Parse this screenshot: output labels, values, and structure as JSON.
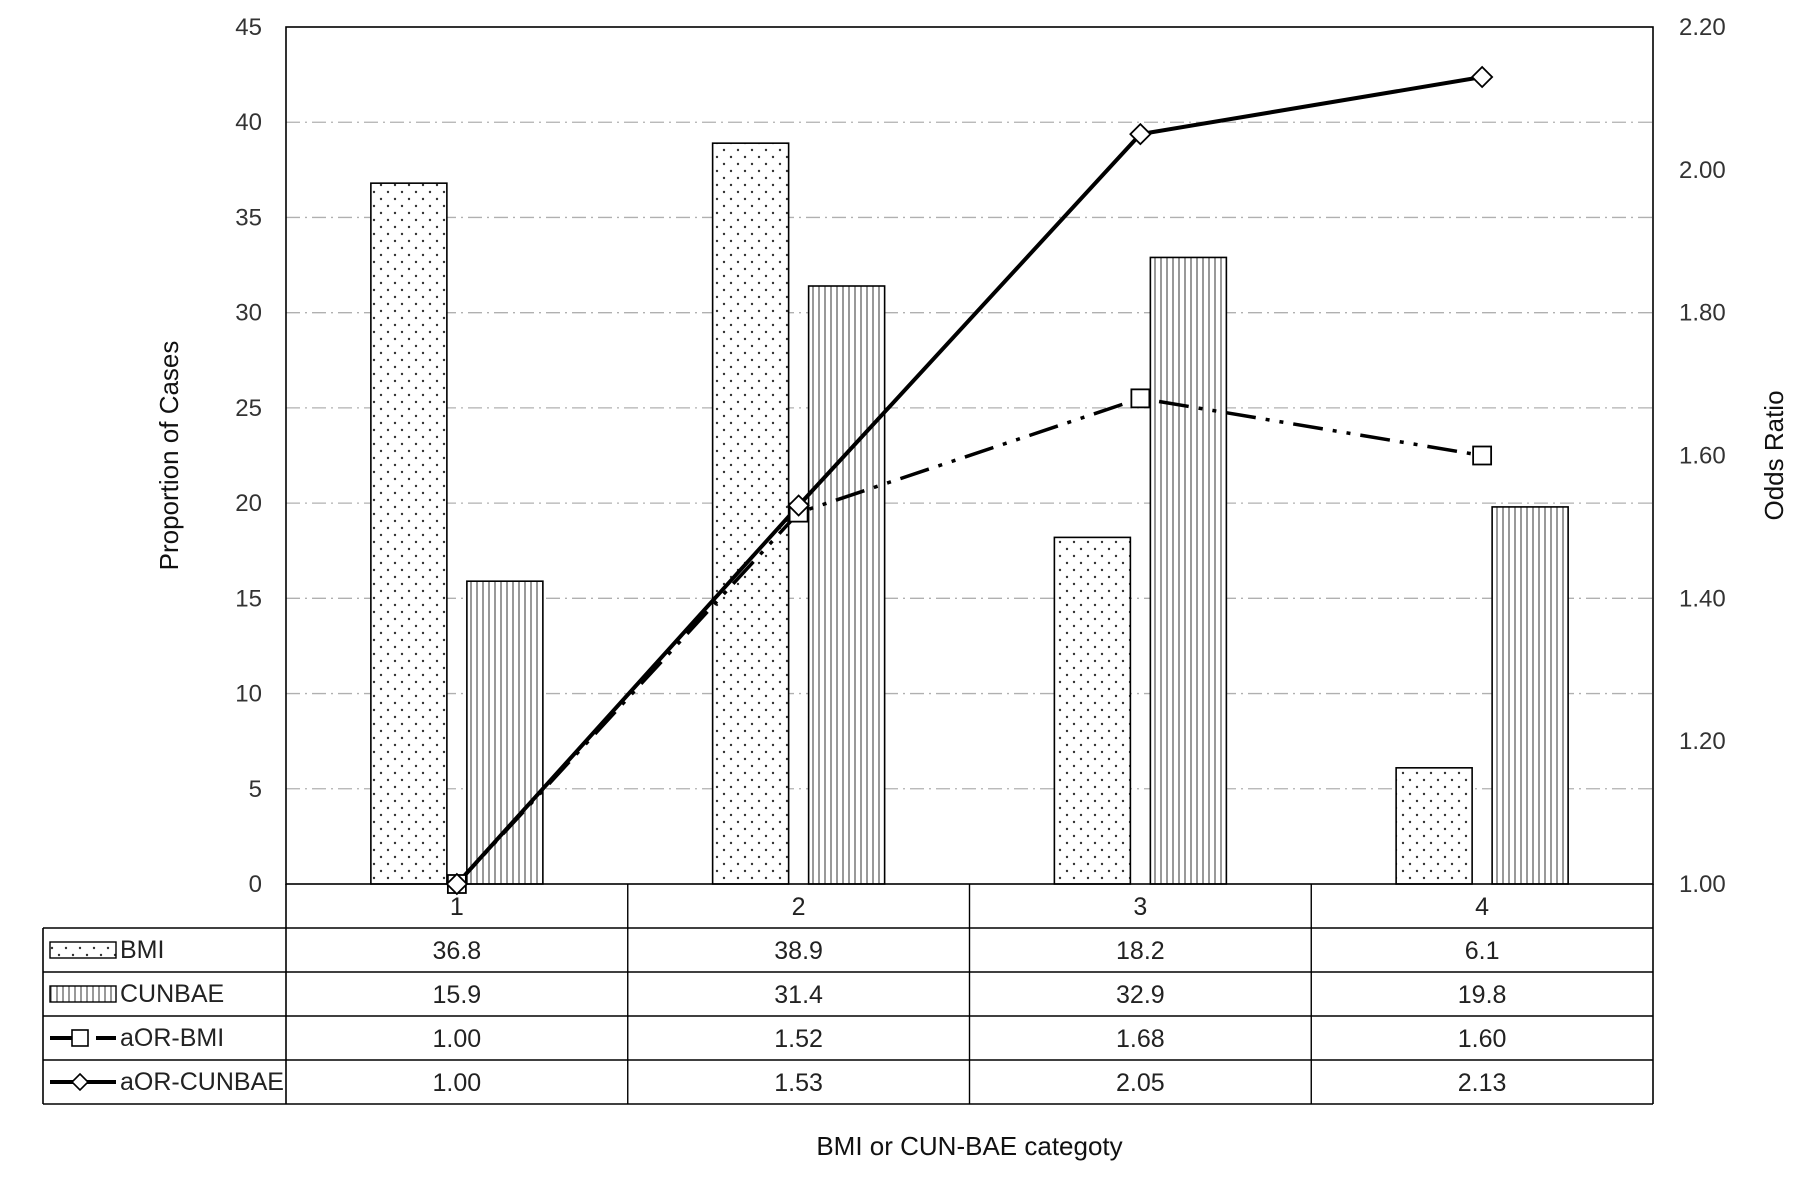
{
  "chart_data": {
    "type": "bar",
    "categories": [
      "1",
      "2",
      "3",
      "4"
    ],
    "xlabel": "BMI or CUN-BAE categoty",
    "ylabel": "Proportion of Cases",
    "y2label": "Odds Ratio",
    "ylim": [
      0,
      45
    ],
    "y2lim": [
      1.0,
      2.2
    ],
    "yticks": [
      "0",
      "5",
      "10",
      "15",
      "20",
      "25",
      "30",
      "35",
      "40",
      "45"
    ],
    "y2ticks": [
      "1.00",
      "1.20",
      "1.40",
      "1.60",
      "1.80",
      "2.00",
      "2.20"
    ],
    "grid": true,
    "legend": "data-table-left",
    "series": [
      {
        "name": "BMI",
        "kind": "bar",
        "axis": "left",
        "pattern": "dots",
        "values": [
          36.8,
          38.9,
          18.2,
          6.1
        ],
        "labels": [
          "36.8",
          "38.9",
          "18.2",
          "6.1"
        ]
      },
      {
        "name": "CUNBAE",
        "kind": "bar",
        "axis": "left",
        "pattern": "vertical-lines",
        "values": [
          15.9,
          31.4,
          32.9,
          19.8
        ],
        "labels": [
          "15.9",
          "31.4",
          "32.9",
          "19.8"
        ]
      },
      {
        "name": "aOR-BMI",
        "kind": "line",
        "axis": "right",
        "marker": "square",
        "dash": "dash-dot-dot",
        "values": [
          1.0,
          1.52,
          1.68,
          1.6
        ],
        "labels": [
          "1.00",
          "1.52",
          "1.68",
          "1.60"
        ]
      },
      {
        "name": "aOR-CUNBAE",
        "kind": "line",
        "axis": "right",
        "marker": "diamond",
        "dash": "solid",
        "values": [
          1.0,
          1.53,
          2.05,
          2.13
        ],
        "labels": [
          "1.00",
          "1.53",
          "2.05",
          "2.13"
        ]
      }
    ],
    "colors": {
      "ink": "#000000",
      "grid": "#b0b0b0",
      "text": "#333333"
    }
  }
}
